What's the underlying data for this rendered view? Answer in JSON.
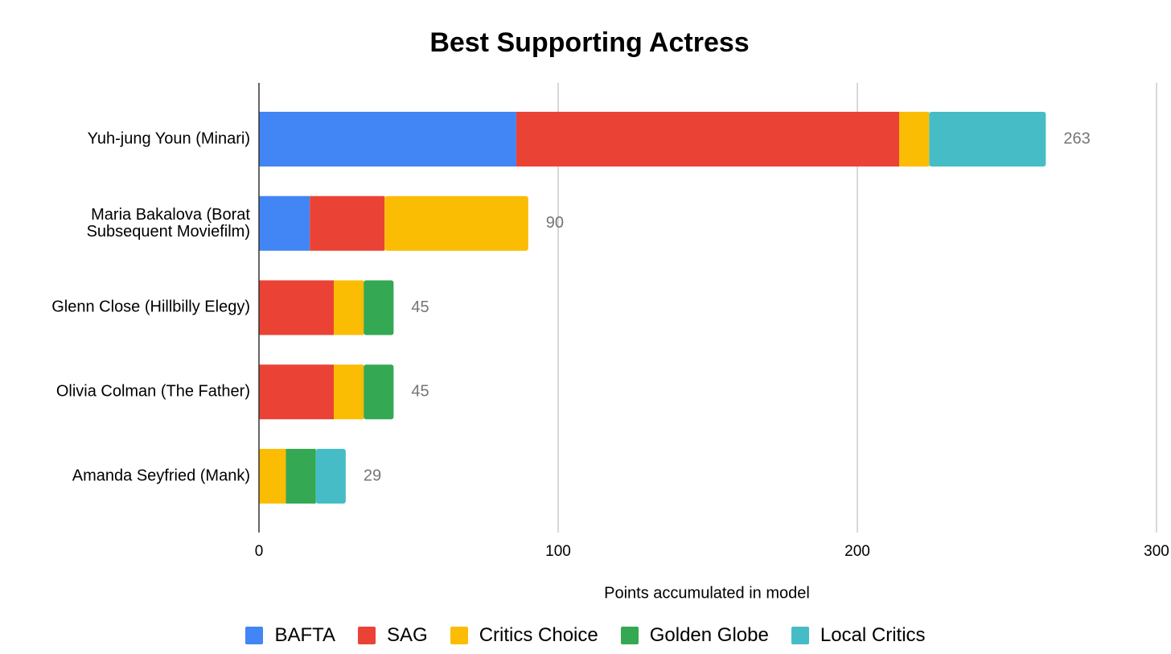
{
  "chart_data": {
    "type": "bar",
    "orientation": "horizontal",
    "stacked": true,
    "title": "Best Supporting Actress",
    "x_label": "Points accumulated in model",
    "categories": [
      "Yuh-jung Youn (Minari)",
      "Maria Bakalova (Borat Subsequent Moviefilm)",
      "Glenn Close (Hillbilly Elegy)",
      "Olivia Colman (The Father)",
      "Amanda Seyfried (Mank)"
    ],
    "series": [
      {
        "name": "BAFTA",
        "color": "#4285f4",
        "values": [
          86,
          17,
          null,
          null,
          null
        ]
      },
      {
        "name": "SAG",
        "color": "#ea4335",
        "values": [
          128,
          25,
          25,
          25,
          null
        ]
      },
      {
        "name": "Critics Choice",
        "color": "#fbbc04",
        "values": [
          10,
          48,
          10,
          10,
          9
        ]
      },
      {
        "name": "Golden Globe",
        "color": "#34a853",
        "values": [
          null,
          null,
          10,
          10,
          10
        ]
      },
      {
        "name": "Local Critics",
        "color": "#46bdc6",
        "values": [
          39,
          null,
          null,
          null,
          10
        ]
      }
    ],
    "totals": [
      263,
      90,
      45,
      45,
      29
    ],
    "xlim": [
      0,
      300
    ],
    "xticks": [
      0,
      100,
      200,
      300
    ],
    "grid": true
  }
}
